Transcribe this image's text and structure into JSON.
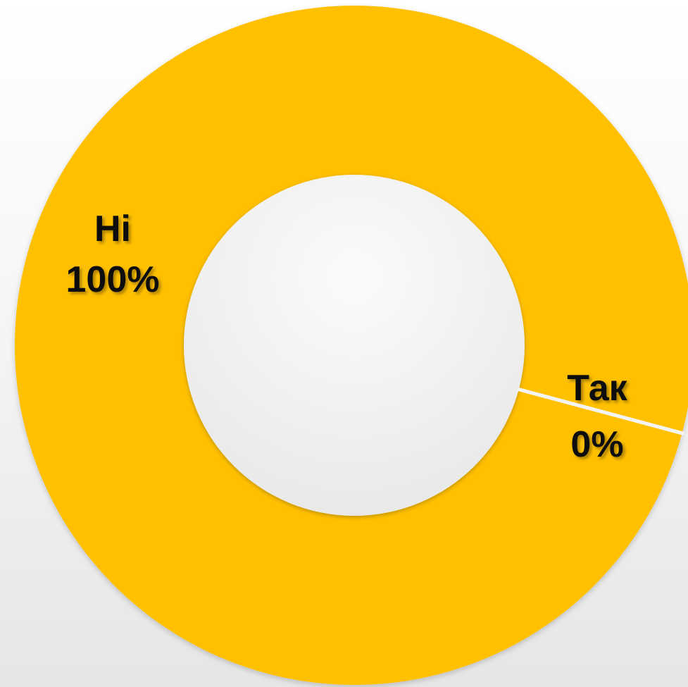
{
  "chart_data": {
    "type": "pie",
    "variant": "donut",
    "slices": [
      {
        "label": "Так",
        "value": 0,
        "percent_label": "0%",
        "color": "#FFC000"
      },
      {
        "label": "Ні",
        "value": 100,
        "percent_label": "100%",
        "color": "#FFC000"
      }
    ],
    "legend": "none"
  }
}
